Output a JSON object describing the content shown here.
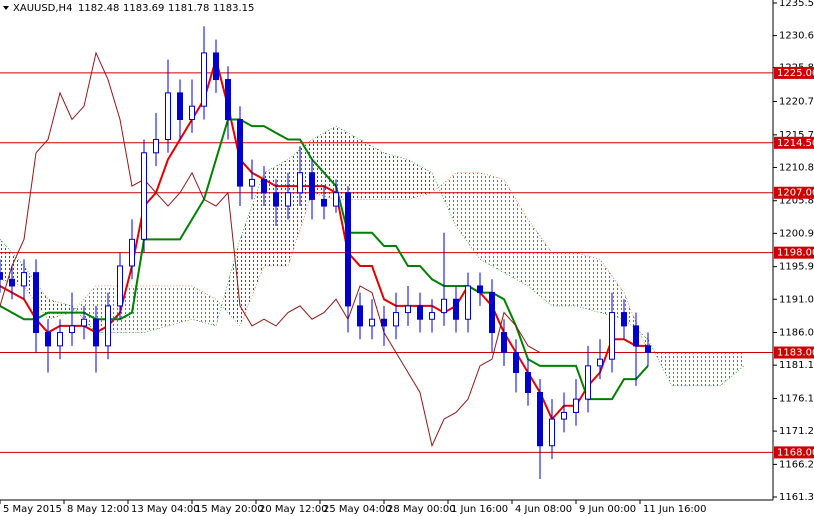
{
  "chart_data": {
    "type": "candlestick",
    "title": "XAUUSD,H4",
    "ohlc": [
      1182.48,
      1183.69,
      1181.78,
      1183.15
    ],
    "xlim": [
      0,
      193.25
    ],
    "ylim": [
      1160.85,
      1235.95
    ],
    "xticks": [
      {
        "value": 0,
        "label": "5 May 2015"
      },
      {
        "value": 16,
        "label": "8 May 12:00"
      },
      {
        "value": 32,
        "label": "13 May 04:00"
      },
      {
        "value": 48,
        "label": "15 May 20:00"
      },
      {
        "value": 64,
        "label": "20 May 12:00"
      },
      {
        "value": 80,
        "label": "25 May 04:00"
      },
      {
        "value": 96,
        "label": "28 May 00:00"
      },
      {
        "value": 112,
        "label": "1 Jun 16:00"
      },
      {
        "value": 128,
        "label": "4 Jun 08:00"
      },
      {
        "value": 144,
        "label": "9 Jun 00:00"
      },
      {
        "value": 160,
        "label": "11 Jun 16:00"
      }
    ],
    "yticks": [
      {
        "value": 1235.5,
        "label": "1235.50"
      },
      {
        "value": 1230.6,
        "label": "1230.60"
      },
      {
        "value": 1225.8,
        "label": "1225.80"
      },
      {
        "value": 1220.7,
        "label": "1220.70"
      },
      {
        "value": 1215.7,
        "label": "1215.70"
      },
      {
        "value": 1210.8,
        "label": "1210.80"
      },
      {
        "value": 1205.8,
        "label": "1205.80"
      },
      {
        "value": 1200.9,
        "label": "1200.90"
      },
      {
        "value": 1195.9,
        "label": "1195.90"
      },
      {
        "value": 1191,
        "label": "1191.00"
      },
      {
        "value": 1186,
        "label": "1186.00"
      },
      {
        "value": 1181.1,
        "label": "1181.10"
      },
      {
        "value": 1176.1,
        "label": "1176.10"
      },
      {
        "value": 1171.2,
        "label": "1171.20"
      },
      {
        "value": 1166.2,
        "label": "1166.20"
      },
      {
        "value": 1161.3,
        "label": "1161.30"
      }
    ],
    "levels": [
      {
        "value": 1225,
        "label": "1225.00"
      },
      {
        "value": 1214.5,
        "label": "1214.50"
      },
      {
        "value": 1207,
        "label": "1207.00"
      },
      {
        "value": 1198,
        "label": "1198.00"
      },
      {
        "value": 1183,
        "label": "1183.00"
      },
      {
        "value": 1168,
        "label": "1168.00"
      }
    ],
    "level_color": "#cc0000",
    "candles": {
      "color": "#0000cc",
      "x": [
        0,
        3,
        6,
        9,
        12,
        15,
        18,
        21,
        24,
        27,
        30,
        33,
        36,
        39,
        42,
        45,
        48,
        51,
        54,
        57,
        60,
        63,
        66,
        69,
        72,
        75,
        78,
        81,
        84,
        87,
        90,
        93,
        96,
        99,
        102,
        105,
        108,
        111,
        114,
        117,
        120,
        123,
        126,
        129,
        132,
        135,
        138,
        141,
        144,
        147,
        150,
        153,
        156,
        159,
        162
      ],
      "open": [
        1195,
        1194,
        1193,
        1195,
        1186,
        1184,
        1186,
        1187,
        1188,
        1184,
        1190,
        1196,
        1200,
        1213,
        1215,
        1222,
        1218,
        1220,
        1228,
        1224,
        1218,
        1208,
        1209,
        1207,
        1205,
        1207,
        1210,
        1206,
        1205,
        1207,
        1190,
        1187,
        1188,
        1187,
        1189,
        1190,
        1188,
        1189,
        1191,
        1188,
        1193,
        1192,
        1186,
        1183,
        1180,
        1177,
        1169,
        1173,
        1174,
        1176,
        1181,
        1182,
        1189,
        1187,
        1184
      ],
      "high": [
        1197,
        1196,
        1197,
        1197,
        1188,
        1188,
        1192,
        1190,
        1190,
        1192,
        1198,
        1203,
        1215,
        1219,
        1227,
        1224,
        1224,
        1232,
        1230,
        1226,
        1220,
        1212,
        1211,
        1209,
        1210,
        1214,
        1212,
        1208,
        1209,
        1208,
        1192,
        1191,
        1190,
        1192,
        1193,
        1192,
        1191,
        1201,
        1193,
        1195,
        1195,
        1194,
        1188,
        1185,
        1182,
        1179,
        1176,
        1177,
        1179,
        1184,
        1185,
        1192,
        1191,
        1189,
        1186
      ],
      "low": [
        1192,
        1191,
        1191,
        1183,
        1180,
        1182,
        1184,
        1185,
        1180,
        1182,
        1188,
        1194,
        1198,
        1211,
        1213,
        1215,
        1216,
        1218,
        1222,
        1215,
        1205,
        1206,
        1205,
        1202,
        1203,
        1205,
        1203,
        1203,
        1204,
        1186,
        1185,
        1185,
        1184,
        1185,
        1187,
        1186,
        1186,
        1187,
        1186,
        1186,
        1190,
        1183,
        1181,
        1177,
        1175,
        1164,
        1167,
        1171,
        1172,
        1174,
        1179,
        1180,
        1185,
        1178,
        1181
      ],
      "close": [
        1194,
        1193,
        1195,
        1186,
        1184,
        1186,
        1187,
        1188,
        1184,
        1190,
        1196,
        1200,
        1213,
        1215,
        1222,
        1218,
        1220,
        1228,
        1224,
        1218,
        1208,
        1209,
        1207,
        1205,
        1207,
        1210,
        1206,
        1205,
        1207,
        1190,
        1187,
        1188,
        1187,
        1189,
        1190,
        1188,
        1189,
        1191,
        1188,
        1193,
        1192,
        1186,
        1183,
        1180,
        1177,
        1169,
        1173,
        1174,
        1176,
        1181,
        1182,
        1189,
        1187,
        1184,
        1183
      ]
    },
    "series": [
      {
        "color": "#e00000",
        "values": [
          1193,
          1192,
          1191,
          1188,
          1186,
          1187,
          1187,
          1187,
          1186,
          1187,
          1189,
          1196,
          1205,
          1207,
          1212,
          1215,
          1218,
          1221,
          1227,
          1220,
          1212,
          1210,
          1209,
          1208,
          1208,
          1208,
          1208,
          1208,
          1207,
          1198,
          1196,
          1196,
          1191,
          1190,
          1190,
          1190,
          1190,
          1189,
          1190,
          1193,
          1192,
          1190,
          1186,
          1183,
          1180,
          1177,
          1173,
          1175,
          1175,
          1178,
          1180,
          1185,
          1185,
          1184,
          1184
        ]
      },
      {
        "color": "#008000",
        "values": [
          1190,
          1189,
          1188,
          1188,
          1189,
          1189,
          1189,
          1189,
          1188,
          1188,
          1188,
          1189,
          1200,
          1200,
          1200,
          1200,
          1203,
          1206,
          1212,
          1218,
          1218,
          1217,
          1217,
          1216,
          1215,
          1215,
          1212,
          1210,
          1208,
          1201,
          1201,
          1201,
          1199,
          1199,
          1196,
          1196,
          1194,
          1193,
          1193,
          1193,
          1192,
          1192,
          1191,
          1187,
          1182,
          1181,
          1181,
          1181,
          1181,
          1176,
          1176,
          1176,
          1179,
          1179,
          1181
        ]
      },
      {
        "color": "#8b1a1a",
        "values": [
          1190,
          1196,
          1200,
          1213,
          1215,
          1222,
          1218,
          1220,
          1228,
          1224,
          1218,
          1208,
          1209,
          1207,
          1205,
          1207,
          1210,
          1206,
          1205,
          1207,
          1190,
          1187,
          1188,
          1187,
          1189,
          1190,
          1188,
          1189,
          1191,
          1188,
          1193,
          1192,
          1186,
          1183,
          1180,
          1177,
          1169,
          1173,
          1174,
          1176,
          1181,
          1182,
          1189,
          1187,
          1184,
          1183,
          null,
          null,
          null,
          null,
          null,
          null,
          null,
          null,
          null
        ]
      }
    ],
    "cloud": {
      "up_color": "#008000",
      "down_color": "#d2501e",
      "x": [
        0,
        6,
        12,
        18,
        24,
        30,
        36,
        42,
        48,
        54,
        60,
        66,
        72,
        78,
        84,
        90,
        96,
        102,
        108,
        114,
        120,
        126,
        132,
        138,
        144,
        150,
        156,
        162,
        168,
        174,
        180,
        186
      ],
      "span_a": [
        1200,
        1196,
        1191,
        1190,
        1186,
        1186,
        1186,
        1187,
        1188,
        1187,
        1200,
        1210,
        1212,
        1215,
        1217,
        1215,
        1213,
        1212,
        1210,
        1202,
        1197,
        1195,
        1193,
        1190,
        1190,
        1189,
        1188,
        1185,
        1178,
        1178,
        1178,
        1181
      ],
      "span_b": [
        1194,
        1193,
        1188,
        1189,
        1193,
        1193,
        1193,
        1193,
        1193,
        1191,
        1187,
        1196,
        1196,
        1207,
        1206,
        1206,
        1206,
        1206,
        1207,
        1210,
        1210,
        1209,
        1203,
        1198,
        1198,
        1197,
        1192,
        1183,
        1183,
        1183,
        1183,
        1183
      ]
    }
  }
}
